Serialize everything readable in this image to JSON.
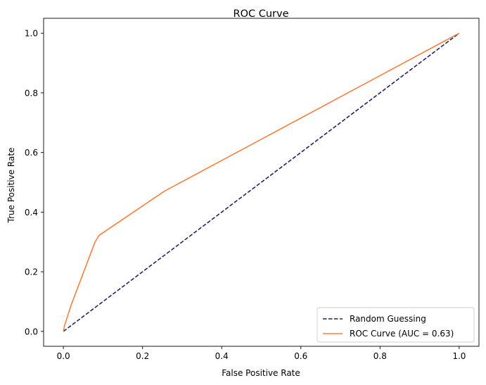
{
  "chart_data": {
    "type": "line",
    "title": "ROC Curve",
    "xlabel": "False Positive Rate",
    "ylabel": "True Positive Rate",
    "xlim": [
      -0.05,
      1.05
    ],
    "ylim": [
      -0.05,
      1.05
    ],
    "xticks": [
      0.0,
      0.2,
      0.4,
      0.6,
      0.8,
      1.0
    ],
    "yticks": [
      0.0,
      0.2,
      0.4,
      0.6,
      0.8,
      1.0
    ],
    "xtick_labels": [
      "0.0",
      "0.2",
      "0.4",
      "0.6",
      "0.8",
      "1.0"
    ],
    "ytick_labels": [
      "0.0",
      "0.2",
      "0.4",
      "0.6",
      "0.8",
      "1.0"
    ],
    "grid": false,
    "legend_position": "lower-right",
    "series": [
      {
        "name": "Random Guessing",
        "style": "dashed",
        "color": "#1f2366",
        "x": [
          0.0,
          1.0
        ],
        "y": [
          0.0,
          1.0
        ]
      },
      {
        "name": "ROC Curve (AUC = 0.63)",
        "style": "solid",
        "color": "#f5803e",
        "x": [
          0.0,
          0.003,
          0.02,
          0.08,
          0.09,
          0.255,
          1.0
        ],
        "y": [
          0.0,
          0.02,
          0.09,
          0.3,
          0.322,
          0.47,
          1.0
        ]
      }
    ]
  }
}
